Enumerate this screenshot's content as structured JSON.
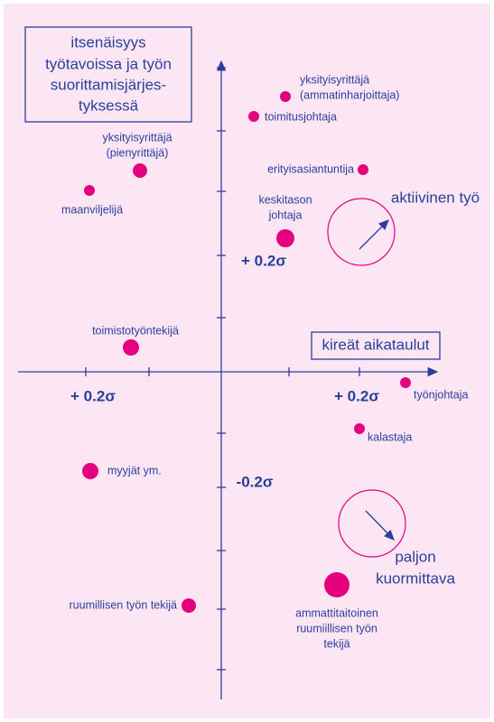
{
  "box_title": [
    "itsenäisyys",
    "työtavoissa ja työn",
    "suorittamisjärjes-",
    "tyksessä"
  ],
  "box_x": "kireät aikataulut",
  "axis_labels": [
    "+ 0.2σ",
    "+ 0.2σ",
    "+ 0.2σ",
    "-0.2σ"
  ],
  "quadrants": {
    "active": "aktiivinen työ",
    "strain": [
      "paljon",
      "kuormittava"
    ]
  },
  "nodes": [
    {
      "label": [
        "yksityisyrittäjä",
        "(ammatinharjoittaja)"
      ]
    },
    {
      "label": [
        "toimitusjohtaja"
      ]
    },
    {
      "label": [
        "yksityisyrittäjä",
        "(pienyrittäjä)"
      ]
    },
    {
      "label": [
        "maanviljelijä"
      ]
    },
    {
      "label": [
        "erityisasiantuntija"
      ]
    },
    {
      "label": [
        "keskitason",
        "johtaja"
      ]
    },
    {
      "label": [
        "toimistotyöntekijä"
      ]
    },
    {
      "label": [
        "työnjohtaja"
      ]
    },
    {
      "label": [
        "kalastaja"
      ]
    },
    {
      "label": [
        "myyjät ym."
      ]
    },
    {
      "label": [
        "ruumillisen työn tekijä"
      ]
    },
    {
      "label": [
        "ammattitaitoinen",
        "ruumiillisen työn",
        "tekijä"
      ]
    }
  ]
}
